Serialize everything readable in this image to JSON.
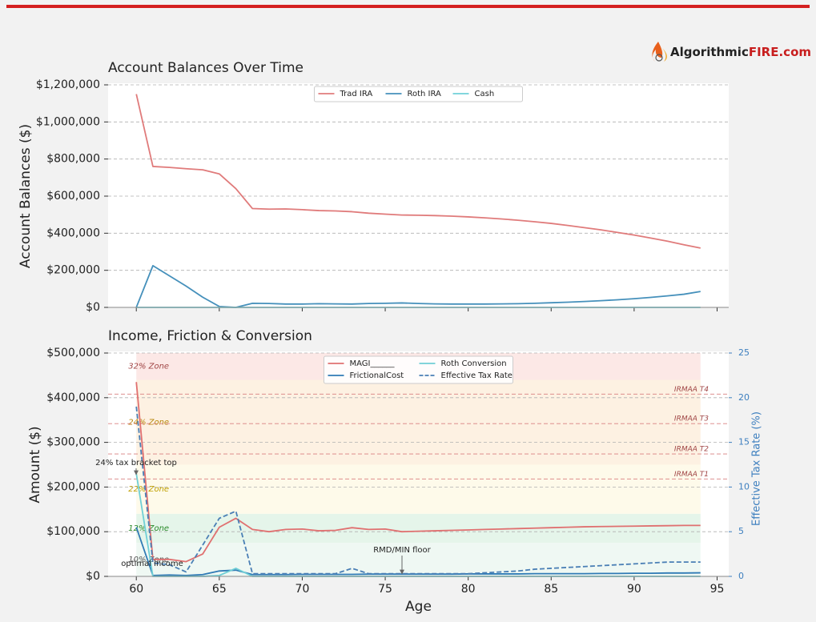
{
  "logo": {
    "name": "Algorithmic",
    "domain": "FIRE.com"
  },
  "chart_data": [
    {
      "type": "line",
      "title": "Account Balances Over Time",
      "ylabel": "Account Balances ($)",
      "x": [
        60,
        61,
        62,
        63,
        64,
        65,
        66,
        67,
        68,
        69,
        70,
        71,
        72,
        73,
        74,
        75,
        76,
        77,
        78,
        79,
        80,
        81,
        82,
        83,
        84,
        85,
        86,
        87,
        88,
        89,
        90,
        91,
        92,
        93,
        94
      ],
      "xlim": [
        58.3,
        95.7
      ],
      "xticks": [
        60,
        65,
        70,
        75,
        80,
        85,
        90,
        95
      ],
      "xtick_labels": false,
      "ylim": [
        0,
        1200000
      ],
      "yticks": [
        {
          "value": 0,
          "label": "$0"
        },
        {
          "value": 200000,
          "label": "$200,000"
        },
        {
          "value": 400000,
          "label": "$400,000"
        },
        {
          "value": 600000,
          "label": "$600,000"
        },
        {
          "value": 800000,
          "label": "$800,000"
        },
        {
          "value": 1000000,
          "label": "$1,000,000"
        },
        {
          "value": 1200000,
          "label": "$1,200,000"
        }
      ],
      "grid": true,
      "legend": "upper center",
      "legend_columns": 3,
      "series": [
        {
          "name": "Trad IRA",
          "color": "#e07b7b",
          "values": [
            1150000,
            760000,
            755000,
            748000,
            742000,
            720000,
            640000,
            533000,
            530000,
            531000,
            527000,
            522000,
            520000,
            516000,
            508000,
            503000,
            498000,
            497000,
            495000,
            492000,
            488000,
            483000,
            477000,
            470000,
            462000,
            453000,
            442000,
            430000,
            418000,
            404000,
            390000,
            374000,
            357000,
            338000,
            320000
          ]
        },
        {
          "name": "Roth IRA",
          "color": "#4590bb",
          "values": [
            0,
            225000,
            170000,
            115000,
            55000,
            5000,
            0,
            22000,
            21000,
            18000,
            18000,
            20000,
            19000,
            18000,
            21000,
            22000,
            24000,
            21000,
            19000,
            18000,
            18000,
            18000,
            19000,
            20000,
            22000,
            25000,
            28000,
            32000,
            36000,
            41000,
            47000,
            54000,
            62000,
            71000,
            86000
          ]
        },
        {
          "name": "Cash",
          "color": "#6fd0d8",
          "values": [
            0,
            0,
            0,
            0,
            0,
            0,
            0,
            0,
            0,
            0,
            0,
            0,
            0,
            0,
            0,
            0,
            0,
            0,
            0,
            0,
            0,
            0,
            0,
            0,
            0,
            0,
            0,
            0,
            0,
            0,
            0,
            0,
            0,
            0,
            0
          ]
        }
      ]
    },
    {
      "type": "line",
      "title": "Income, Friction & Conversion",
      "xlabel": "Age",
      "ylabel": "Amount ($)",
      "y2label": "Effective Tax Rate (%)",
      "x": [
        60,
        61,
        62,
        63,
        64,
        65,
        66,
        67,
        68,
        69,
        70,
        71,
        72,
        73,
        74,
        75,
        76,
        77,
        78,
        79,
        80,
        81,
        82,
        83,
        84,
        85,
        86,
        87,
        88,
        89,
        90,
        91,
        92,
        93,
        94
      ],
      "xlim": [
        58.3,
        95.7
      ],
      "xticks": [
        60,
        65,
        70,
        75,
        80,
        85,
        90,
        95
      ],
      "ylim": [
        0,
        500000
      ],
      "yticks": [
        {
          "value": 0,
          "label": "$0"
        },
        {
          "value": 100000,
          "label": "$100,000"
        },
        {
          "value": 200000,
          "label": "$200,000"
        },
        {
          "value": 300000,
          "label": "$300,000"
        },
        {
          "value": 400000,
          "label": "$400,000"
        },
        {
          "value": 500000,
          "label": "$500,000"
        }
      ],
      "y2lim": [
        0,
        25
      ],
      "y2ticks": [
        0,
        5,
        10,
        15,
        20,
        25
      ],
      "grid": true,
      "legend": "upper center",
      "legend_columns": 2,
      "zones": [
        {
          "label": "32% Zone",
          "lower": 440000,
          "color": "#fce8e6",
          "text_color": "#a04545"
        },
        {
          "label": "24% Zone",
          "lower": 250000,
          "color": "#fdf1e2",
          "text_color": "#b8860b"
        },
        {
          "label": "22% Zone",
          "lower": 140000,
          "color": "#fefaea",
          "text_color": "#c0a000"
        },
        {
          "label": "12% Zone",
          "lower": 75000,
          "color": "#e5f5ea",
          "text_color": "#2a8a2a"
        },
        {
          "label": "10% Zone",
          "lower": 0,
          "color": "#eff8f3",
          "text_color": "#555555"
        }
      ],
      "hlines": [
        {
          "label": "IRMAA T1",
          "value": 218000
        },
        {
          "label": "IRMAA T2",
          "value": 274000
        },
        {
          "label": "IRMAA T3",
          "value": 342000
        },
        {
          "label": "IRMAA T4",
          "value": 408000
        }
      ],
      "annotations": [
        "24% tax bracket top",
        "RMD/MIN floor",
        "optimal income"
      ],
      "series": [
        {
          "name": "MAGI______",
          "color": "#e07070",
          "values": [
            435000,
            38000,
            38000,
            33000,
            50000,
            110000,
            130000,
            105000,
            100000,
            105000,
            106000,
            102000,
            103000,
            109000,
            105000,
            106000,
            100000,
            101000,
            102000,
            103000,
            104000,
            105000,
            106000,
            107000,
            108000,
            109000,
            110000,
            111000,
            111500,
            112000,
            112500,
            113000,
            113500,
            114000,
            114000
          ]
        },
        {
          "name": "FrictionalCost",
          "color": "#2f7ab5",
          "values": [
            110000,
            2000,
            3000,
            2000,
            4000,
            12000,
            14000,
            4000,
            4000,
            4000,
            4500,
            4500,
            4500,
            4500,
            5000,
            5000,
            5000,
            5000,
            5000,
            5000,
            5500,
            5500,
            5500,
            5500,
            6000,
            6000,
            6000,
            6000,
            6500,
            6500,
            7000,
            7000,
            7500,
            7500,
            8000
          ]
        },
        {
          "name": "Roth Conversion",
          "color": "#6fcfd6",
          "values": [
            230000,
            0,
            0,
            0,
            0,
            2000,
            18000,
            0,
            0,
            0,
            0,
            0,
            0,
            0,
            0,
            0,
            0,
            0,
            0,
            0,
            0,
            0,
            0,
            0,
            0,
            0,
            0,
            0,
            0,
            0,
            0,
            0,
            0,
            0,
            0
          ]
        },
        {
          "name": "Effective Tax Rate",
          "color": "#4a7fb5",
          "style": "dashed",
          "axis": "y2",
          "values": [
            19,
            1.5,
            1.3,
            0.5,
            3.5,
            6.5,
            7.3,
            0.3,
            0.3,
            0.3,
            0.3,
            0.3,
            0.3,
            0.9,
            0.3,
            0.3,
            0.3,
            0.3,
            0.3,
            0.3,
            0.3,
            0.4,
            0.5,
            0.6,
            0.8,
            0.9,
            1.0,
            1.1,
            1.2,
            1.3,
            1.4,
            1.5,
            1.6,
            1.6,
            1.6
          ]
        }
      ]
    }
  ]
}
